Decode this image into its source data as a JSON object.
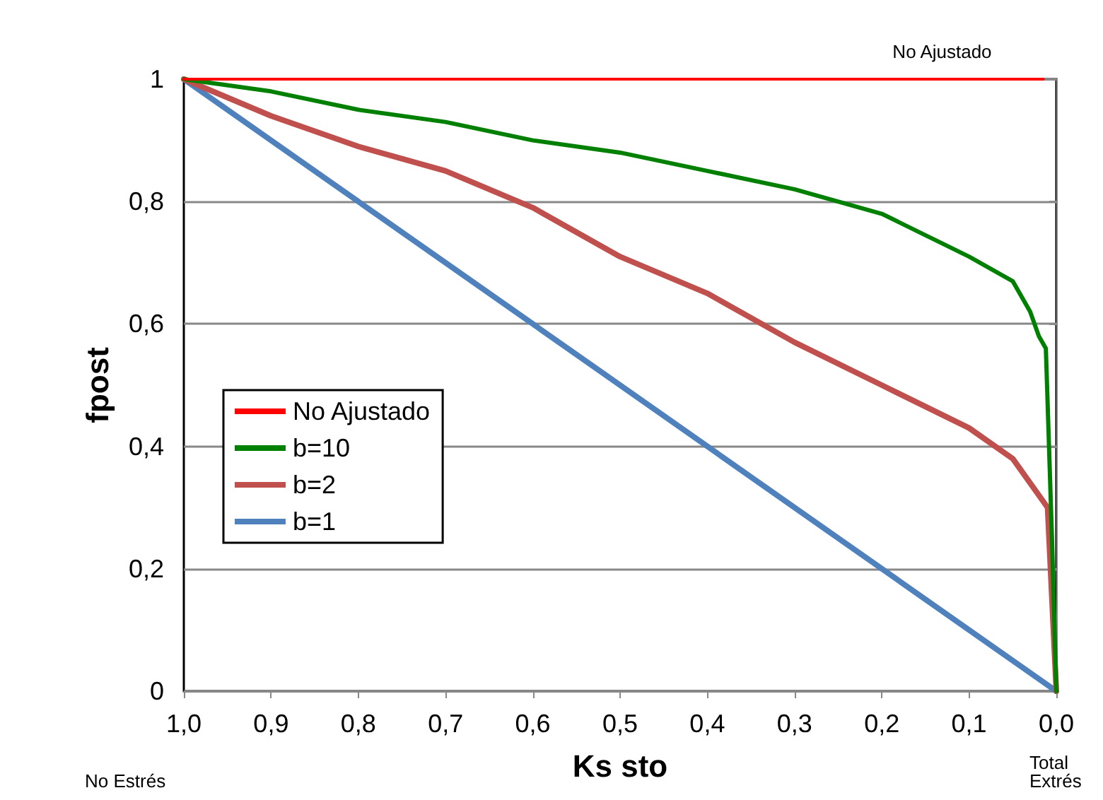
{
  "chart_data": {
    "type": "line",
    "xlabel": "Ks sto",
    "ylabel": "fpost",
    "xlim": [
      1,
      0
    ],
    "ylim": [
      0,
      1
    ],
    "xticks": [
      {
        "value": 1,
        "label": "1,0"
      },
      {
        "value": 0.9,
        "label": "0,9"
      },
      {
        "value": 0.8,
        "label": "0,8"
      },
      {
        "value": 0.7,
        "label": "0,7"
      },
      {
        "value": 0.6,
        "label": "0,6"
      },
      {
        "value": 0.5,
        "label": "0,5"
      },
      {
        "value": 0.4,
        "label": "0,4"
      },
      {
        "value": 0.3,
        "label": "0,3"
      },
      {
        "value": 0.2,
        "label": "0,2"
      },
      {
        "value": 0.1,
        "label": "0,1"
      },
      {
        "value": 0,
        "label": "0,0"
      }
    ],
    "yticks": [
      0,
      {
        "value": 0.2,
        "label": "0,2"
      },
      {
        "value": 0.4,
        "label": "0,4"
      },
      {
        "value": 0.6,
        "label": "0,6"
      },
      {
        "value": 0.8,
        "label": "0,8"
      },
      1
    ],
    "grid": "y",
    "legend": "left",
    "marker": "none",
    "line_style": "solid",
    "annotations": [
      "No Ajustado",
      "No Estrés",
      "Total Extrés"
    ],
    "series": [
      {
        "name": "No Ajustado",
        "color": "#ff0000",
        "x": [
          1,
          0.015
        ],
        "values": [
          1,
          1
        ]
      },
      {
        "name": "b=10",
        "color": "#008000",
        "x": [
          1,
          0.9,
          0.8,
          0.7,
          0.6,
          0.5,
          0.4,
          0.3,
          0.2,
          0.1,
          0.05,
          0.03,
          0.02,
          0.012,
          0.005,
          0
        ],
        "values": [
          1,
          0.98,
          0.95,
          0.93,
          0.9,
          0.88,
          0.85,
          0.82,
          0.78,
          0.71,
          0.67,
          0.62,
          0.58,
          0.56,
          0.25,
          0
        ]
      },
      {
        "name": "b=2",
        "color": "#c0504d",
        "x": [
          1,
          0.9,
          0.8,
          0.7,
          0.6,
          0.5,
          0.4,
          0.3,
          0.2,
          0.1,
          0.05,
          0.015,
          0.01,
          0
        ],
        "values": [
          1,
          0.94,
          0.89,
          0.85,
          0.79,
          0.71,
          0.65,
          0.57,
          0.5,
          0.43,
          0.38,
          0.31,
          0.3,
          0
        ]
      },
      {
        "name": "b=1",
        "color": "#4f81bd",
        "x": [
          1,
          0
        ],
        "values": [
          1,
          0
        ]
      }
    ]
  }
}
